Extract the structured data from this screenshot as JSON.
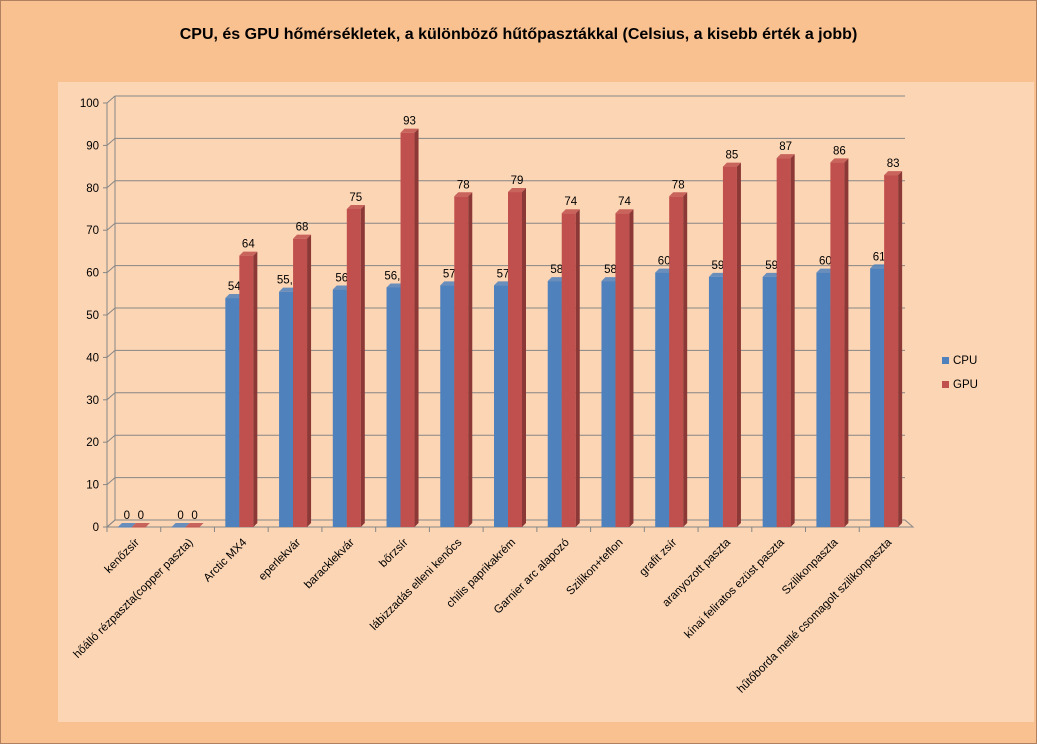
{
  "chart_data": {
    "type": "bar",
    "title": "CPU, és GPU hőmérsékletek, a különböző hűtőpasztákkal (Celsius, a kisebb érték a jobb)",
    "xlabel": "",
    "ylabel": "",
    "ylim": [
      0,
      100
    ],
    "yticks": [
      "0",
      "10",
      "20",
      "30",
      "40",
      "50",
      "60",
      "70",
      "80",
      "90",
      "100"
    ],
    "grid": true,
    "legend_position": "right",
    "categories": [
      "kenőzsír",
      "hőálló rézpaszta(copper paszta)",
      "Arctic MX4",
      "eperlekvár",
      "baracklekvár",
      "bőrzsír",
      "lábizzadás elleni kenőcs",
      "chilis paprikakrém",
      "Garnier arc alapozó",
      "Szilikon+teflon",
      "grafit zsír",
      "aranyozott paszta",
      "kínai feliratos ezüst paszta",
      "Szilikonpaszta",
      "hűtőborda mellé csomagolt szilikonpaszta"
    ],
    "series": [
      {
        "name": "CPU",
        "color": "#4f81bd",
        "values": [
          0,
          0,
          54,
          55.5,
          56,
          56.5,
          57,
          57,
          58,
          58,
          60,
          59,
          59,
          60,
          61
        ],
        "labels": [
          "0",
          "0",
          "54",
          "55,5",
          "56",
          "56,5",
          "57",
          "57",
          "58",
          "58",
          "60",
          "59",
          "59",
          "60",
          "61"
        ]
      },
      {
        "name": "GPU",
        "color": "#c0504d",
        "values": [
          0,
          0,
          64,
          68,
          75,
          93,
          78,
          79,
          74,
          74,
          78,
          85,
          87,
          86,
          83
        ],
        "labels": [
          "0",
          "0",
          "64",
          "68",
          "75",
          "93",
          "78",
          "79",
          "74",
          "74",
          "78",
          "85",
          "87",
          "86",
          "83"
        ]
      }
    ]
  }
}
